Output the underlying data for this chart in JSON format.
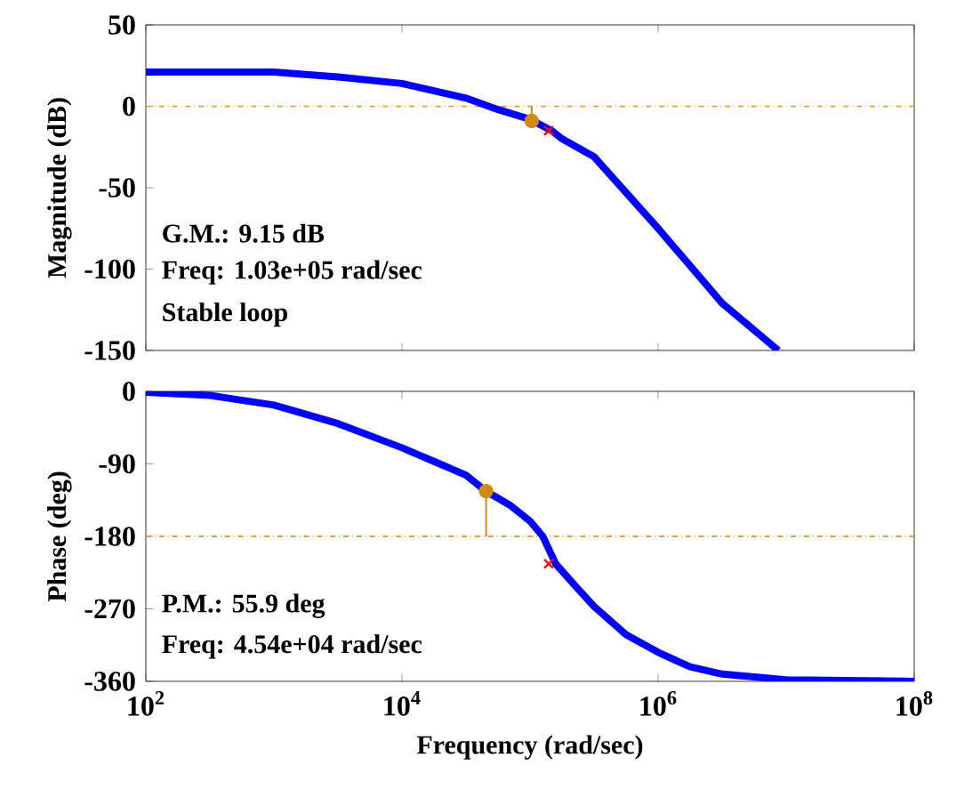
{
  "chart_data": [
    {
      "type": "line",
      "ylabel": "Magnitude (dB)",
      "log": "x",
      "tick_labels": "y",
      "grid": false,
      "xlim": [
        100,
        100000000
      ],
      "ylim": [
        -150,
        50
      ],
      "xticks": [
        {
          "value": 100,
          "label": null
        },
        {
          "value": 10000,
          "label": null
        },
        {
          "value": 1000000,
          "label": null
        },
        {
          "value": 100000000,
          "label": null
        }
      ],
      "yticks": [
        -150,
        -100,
        -50,
        0,
        50
      ],
      "ref_lines": [
        {
          "axis": "y",
          "value": 0,
          "color": "#e0a040",
          "line_style": "dashdot"
        }
      ],
      "series": [
        {
          "color": "#0000ff",
          "marker": "none",
          "x": [
            100,
            316,
            1000,
            3162,
            10000,
            31623,
            56234,
            100000,
            147900,
            177828,
            316228,
            562341,
            1000000,
            3162278,
            8700000
          ],
          "values": [
            21,
            21,
            21,
            18,
            14,
            5,
            -2,
            -8,
            -15,
            -20,
            -31,
            -53,
            -75,
            -121,
            -150
          ]
        },
        {
          "type": "scatter",
          "color": "#d08a10",
          "marker": "circle",
          "x": [
            103000
          ],
          "values": [
            -9
          ],
          "errors": [
            [
              -9,
              0
            ]
          ]
        },
        {
          "type": "scatter",
          "color": "#ff0000",
          "marker": "cross",
          "x": [
            140000
          ],
          "values": [
            -15
          ]
        }
      ],
      "annotations": [
        "G.M.: 9.15 dB",
        "Freq: 1.03e+05 rad/sec",
        "Stable loop"
      ]
    },
    {
      "type": "line",
      "xlabel": "Frequency (rad/sec)",
      "ylabel": "Phase (deg)",
      "log": "x",
      "grid": false,
      "xlim": [
        100,
        100000000
      ],
      "ylim": [
        -360,
        0
      ],
      "xticks": [
        {
          "value": 100,
          "label": "10$^{2}$"
        },
        {
          "value": 10000,
          "label": "10$^{4}$"
        },
        {
          "value": 1000000,
          "label": "10$^{6}$"
        },
        {
          "value": 100000000,
          "label": "10$^{8}$"
        }
      ],
      "yticks": [
        -360,
        -270,
        -180,
        -90,
        0
      ],
      "ref_lines": [
        {
          "axis": "y",
          "value": -180,
          "color": "#e0a040",
          "line_style": "dashdot"
        }
      ],
      "series": [
        {
          "color": "#0000ff",
          "marker": "none",
          "x": [
            100,
            316,
            1000,
            3162,
            10000,
            17783,
            31623,
            45400,
            70795,
            100000,
            125893,
            158489,
            223872,
            316228,
            562341,
            1000000,
            1778279,
            3162278,
            10000000,
            100000000
          ],
          "values": [
            -1,
            -5,
            -17,
            -40,
            -70,
            -87,
            -104,
            -124,
            -142,
            -161,
            -180,
            -214,
            -241,
            -267,
            -302,
            -324,
            -342,
            -351,
            -358,
            -360
          ]
        },
        {
          "type": "scatter",
          "color": "#d08a10",
          "marker": "circle",
          "x": [
            45400
          ],
          "values": [
            -124
          ],
          "errors": [
            [
              -180,
              -124
            ]
          ]
        },
        {
          "type": "scatter",
          "color": "#ff0000",
          "marker": "cross",
          "x": [
            140000
          ],
          "values": [
            -214
          ]
        }
      ],
      "annotations": [
        "P.M.: 55.9 deg",
        "Freq: 4.54e+04 rad/sec"
      ]
    }
  ]
}
